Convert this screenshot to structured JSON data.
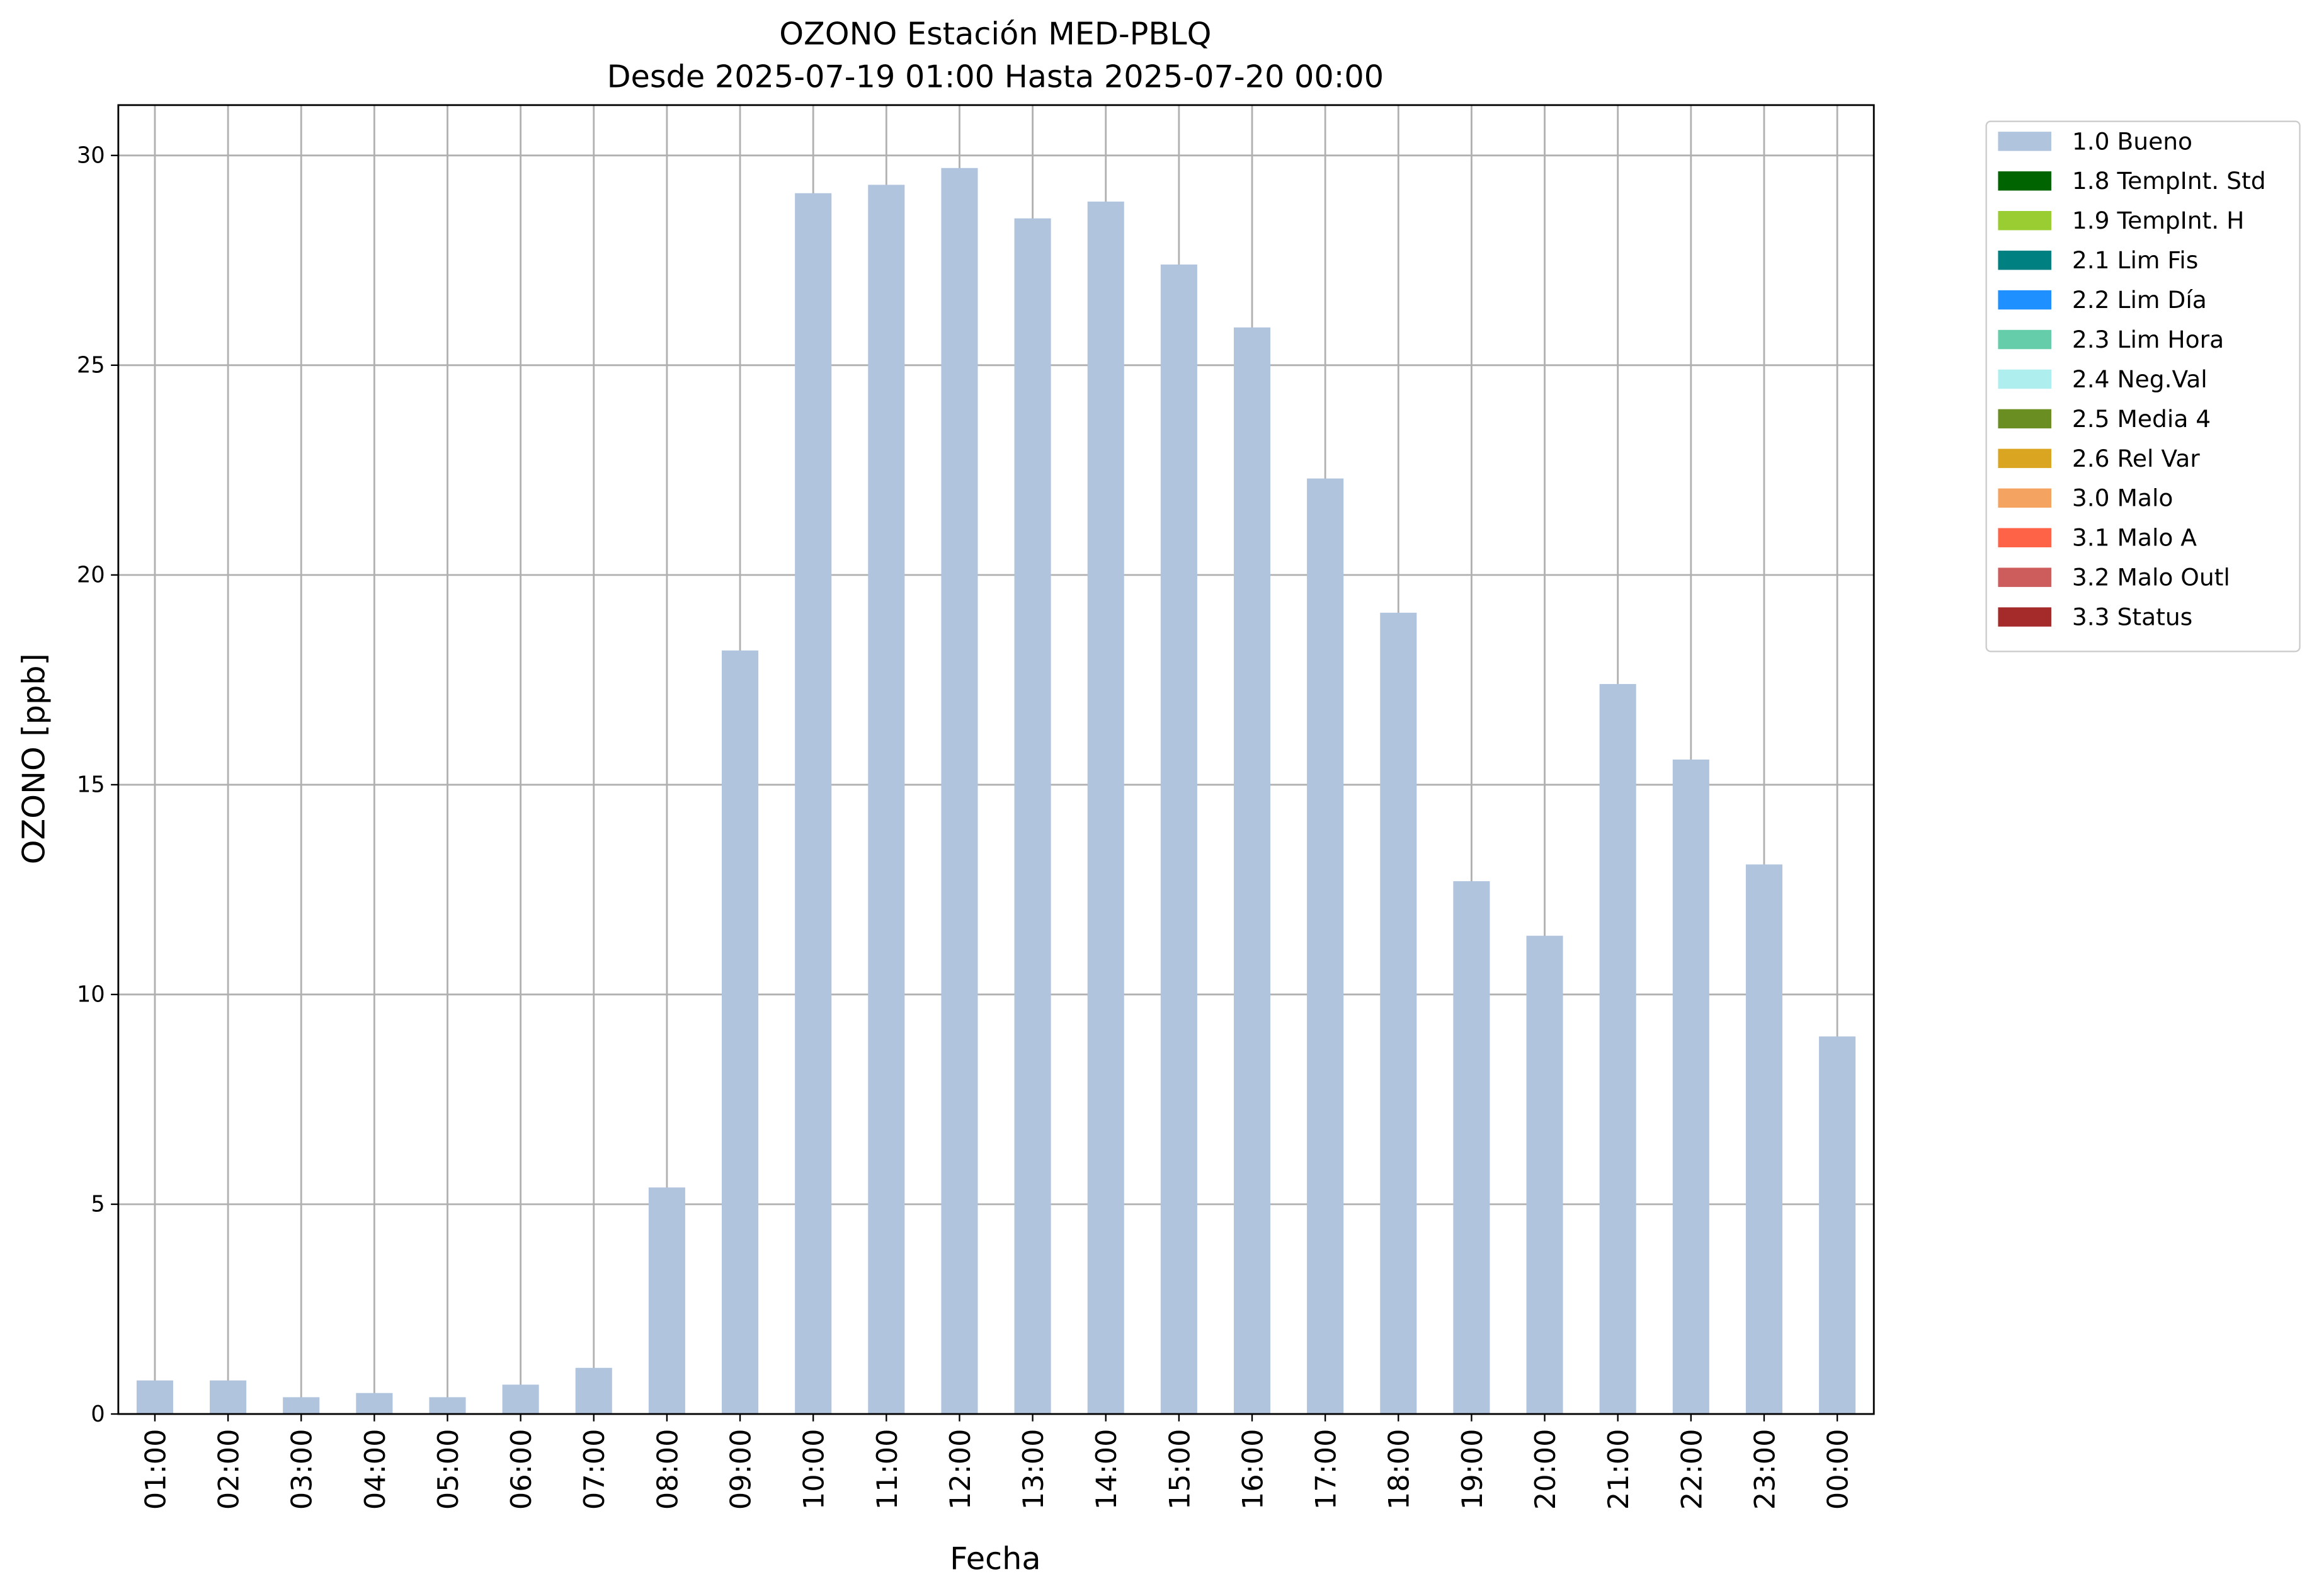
{
  "chart_data": {
    "type": "bar",
    "title": "OZONO Estación MED-PBLQ",
    "subtitle": "Desde 2025-07-19 01:00 Hasta 2025-07-20 00:00",
    "x_label": "Fecha",
    "y_label": "OZONO [ppb]",
    "categories": [
      "01:00",
      "02:00",
      "03:00",
      "04:00",
      "05:00",
      "06:00",
      "07:00",
      "08:00",
      "09:00",
      "10:00",
      "11:00",
      "12:00",
      "13:00",
      "14:00",
      "15:00",
      "16:00",
      "17:00",
      "18:00",
      "19:00",
      "20:00",
      "21:00",
      "22:00",
      "23:00",
      "00:00"
    ],
    "series": [
      {
        "name": "1.0 Bueno",
        "color": "#b0c4de",
        "values": [
          0.8,
          0.8,
          0.4,
          0.5,
          0.4,
          0.7,
          1.1,
          5.4,
          18.2,
          29.1,
          29.3,
          29.7,
          28.5,
          28.9,
          27.4,
          25.9,
          22.3,
          19.1,
          12.7,
          11.4,
          17.4,
          15.6,
          13.1,
          9.0
        ]
      },
      {
        "name": "1.8 TempInt. Std",
        "color": "#006400"
      },
      {
        "name": "1.9 TempInt. H",
        "color": "#9acd32"
      },
      {
        "name": "2.1 Lim Fis",
        "color": "#008080"
      },
      {
        "name": "2.2 Lim Día",
        "color": "#1e90ff"
      },
      {
        "name": "2.3 Lim Hora",
        "color": "#66cdaa"
      },
      {
        "name": "2.4 Neg.Val",
        "color": "#afeeee"
      },
      {
        "name": "2.5 Media 4",
        "color": "#6b8e23"
      },
      {
        "name": "2.6 Rel Var",
        "color": "#daa520"
      },
      {
        "name": "3.0 Malo",
        "color": "#f4a460"
      },
      {
        "name": "3.1 Malo A",
        "color": "#ff6347"
      },
      {
        "name": "3.2 Malo Outl",
        "color": "#cd5c5c"
      },
      {
        "name": "3.3 Status",
        "color": "#a52a2a"
      }
    ],
    "ylim": [
      0,
      31.2
    ],
    "yticks": [
      0,
      5,
      10,
      15,
      20,
      25,
      30
    ],
    "grid": true,
    "legend": "outside-upper-right"
  }
}
